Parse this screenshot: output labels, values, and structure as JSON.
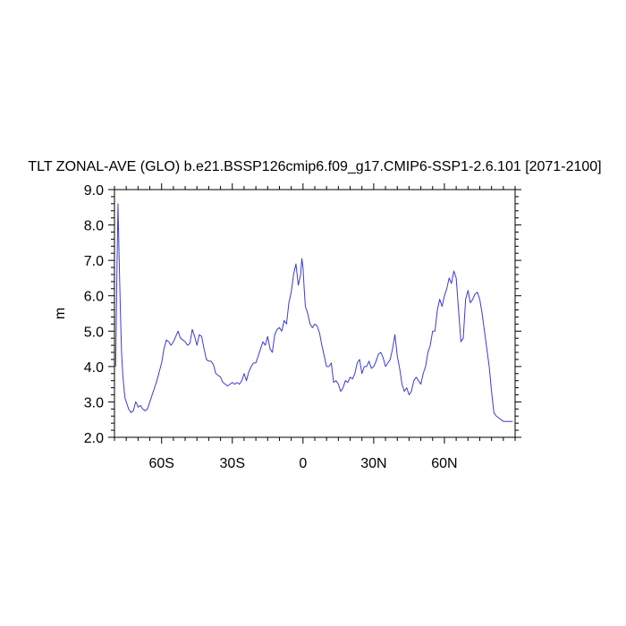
{
  "chart_data": {
    "type": "line",
    "title": "TLT ZONAL-AVE (GLO) b.e21.BSSP126cmip6.f09_g17.CMIP6-SSP1-2.6.101 [2071-2100]",
    "xlabel": "",
    "ylabel": "m",
    "xlim": [
      -80,
      90
    ],
    "ylim": [
      2.0,
      9.0
    ],
    "x_ticks": [
      {
        "value": -60,
        "label": "60S"
      },
      {
        "value": -30,
        "label": "30S"
      },
      {
        "value": 0,
        "label": "0"
      },
      {
        "value": 30,
        "label": "30N"
      },
      {
        "value": 60,
        "label": "60N"
      }
    ],
    "y_ticks": [
      {
        "value": 2.0,
        "label": "2.0"
      },
      {
        "value": 3.0,
        "label": "3.0"
      },
      {
        "value": 4.0,
        "label": "4.0"
      },
      {
        "value": 5.0,
        "label": "5.0"
      },
      {
        "value": 6.0,
        "label": "6.0"
      },
      {
        "value": 7.0,
        "label": "7.0"
      },
      {
        "value": 8.0,
        "label": "8.0"
      },
      {
        "value": 9.0,
        "label": "9.0"
      }
    ],
    "grid": false,
    "line_color": "#3b3bd6",
    "series": [
      {
        "x": [
          -79.5,
          -79.0,
          -78.5,
          -78.0,
          -77.5,
          -77.0,
          -76.5,
          -76.0,
          -75.5,
          -75.0,
          -74.0,
          -73.0,
          -72.0,
          -71.0,
          -70.5,
          -70.0,
          -69.0,
          -68.0,
          -67.0,
          -66.0,
          -65.0,
          -64.0,
          -63.0,
          -62.0,
          -61.0,
          -60.0,
          -59.0,
          -58.0,
          -57.0,
          -56.0,
          -55.0,
          -54.0,
          -53.0,
          -52.0,
          -51.0,
          -50.0,
          -49.0,
          -48.0,
          -47.0,
          -46.0,
          -45.0,
          -44.0,
          -43.0,
          -42.0,
          -41.0,
          -40.0,
          -39.0,
          -38.0,
          -37.0,
          -36.0,
          -35.0,
          -34.0,
          -33.0,
          -32.0,
          -31.0,
          -30.0,
          -29.0,
          -28.0,
          -27.0,
          -26.0,
          -25.0,
          -24.0,
          -23.0,
          -22.0,
          -21.0,
          -20.0,
          -19.0,
          -18.0,
          -17.0,
          -16.0,
          -15.0,
          -14.0,
          -13.0,
          -12.0,
          -11.0,
          -10.0,
          -9.0,
          -8.0,
          -7.0,
          -6.0,
          -5.0,
          -4.0,
          -3.0,
          -2.0,
          -1.0,
          -0.5,
          0.0,
          0.5,
          1.0,
          2.0,
          3.0,
          4.0,
          5.0,
          6.0,
          7.0,
          8.0,
          9.0,
          10.0,
          11.0,
          12.0,
          13.0,
          14.0,
          15.0,
          16.0,
          17.0,
          18.0,
          19.0,
          20.0,
          21.0,
          22.0,
          23.0,
          24.0,
          25.0,
          26.0,
          27.0,
          28.0,
          29.0,
          30.0,
          31.0,
          32.0,
          33.0,
          34.0,
          35.0,
          36.0,
          37.0,
          38.0,
          39.0,
          40.0,
          41.0,
          42.0,
          43.0,
          44.0,
          45.0,
          46.0,
          47.0,
          48.0,
          49.0,
          50.0,
          51.0,
          52.0,
          53.0,
          54.0,
          55.0,
          56.0,
          57.0,
          58.0,
          59.0,
          60.0,
          61.0,
          62.0,
          63.0,
          64.0,
          65.0,
          66.0,
          67.0,
          68.0,
          69.0,
          70.0,
          71.0,
          72.0,
          73.0,
          74.0,
          75.0,
          76.0,
          77.0,
          78.0,
          79.0,
          80.0,
          81.0,
          82.0,
          83.0,
          84.0,
          85.0,
          86.0,
          87.0,
          88.0,
          89.0
        ],
        "y": [
          4.0,
          6.5,
          8.6,
          7.0,
          5.6,
          4.4,
          3.8,
          3.4,
          3.1,
          3.0,
          2.8,
          2.7,
          2.75,
          3.0,
          2.95,
          2.85,
          2.9,
          2.8,
          2.75,
          2.8,
          3.0,
          3.2,
          3.4,
          3.6,
          3.85,
          4.1,
          4.5,
          4.75,
          4.7,
          4.6,
          4.7,
          4.85,
          5.0,
          4.8,
          4.75,
          4.7,
          4.6,
          4.65,
          5.05,
          4.85,
          4.6,
          4.9,
          4.85,
          4.5,
          4.2,
          4.15,
          4.15,
          4.05,
          3.8,
          3.75,
          3.7,
          3.55,
          3.5,
          3.45,
          3.5,
          3.55,
          3.5,
          3.55,
          3.5,
          3.6,
          3.8,
          3.6,
          3.85,
          4.0,
          4.1,
          4.1,
          4.3,
          4.5,
          4.7,
          4.6,
          4.85,
          4.5,
          4.4,
          4.9,
          5.05,
          5.1,
          5.0,
          5.3,
          5.2,
          5.8,
          6.1,
          6.6,
          6.9,
          6.3,
          6.6,
          7.05,
          6.8,
          6.2,
          5.7,
          5.5,
          5.2,
          5.1,
          5.2,
          5.15,
          4.95,
          4.6,
          4.3,
          4.0,
          4.0,
          4.1,
          3.55,
          3.6,
          3.5,
          3.3,
          3.4,
          3.6,
          3.55,
          3.7,
          3.65,
          3.8,
          4.1,
          4.2,
          3.8,
          4.0,
          4.0,
          4.15,
          3.95,
          4.0,
          4.15,
          4.35,
          4.4,
          4.25,
          4.0,
          4.1,
          4.2,
          4.5,
          4.9,
          4.3,
          3.95,
          3.5,
          3.3,
          3.4,
          3.2,
          3.3,
          3.6,
          3.7,
          3.6,
          3.5,
          3.8,
          4.0,
          4.4,
          4.6,
          5.0,
          5.0,
          5.6,
          5.9,
          5.7,
          6.0,
          6.2,
          6.5,
          6.35,
          6.7,
          6.5,
          5.6,
          4.7,
          4.8,
          5.9,
          6.15,
          5.8,
          5.9,
          6.05,
          6.1,
          5.9,
          5.5,
          5.0,
          4.5,
          4.0,
          3.3,
          2.7,
          2.6,
          2.55,
          2.5,
          2.45,
          2.45,
          2.45,
          2.45,
          2.45
        ]
      }
    ]
  }
}
